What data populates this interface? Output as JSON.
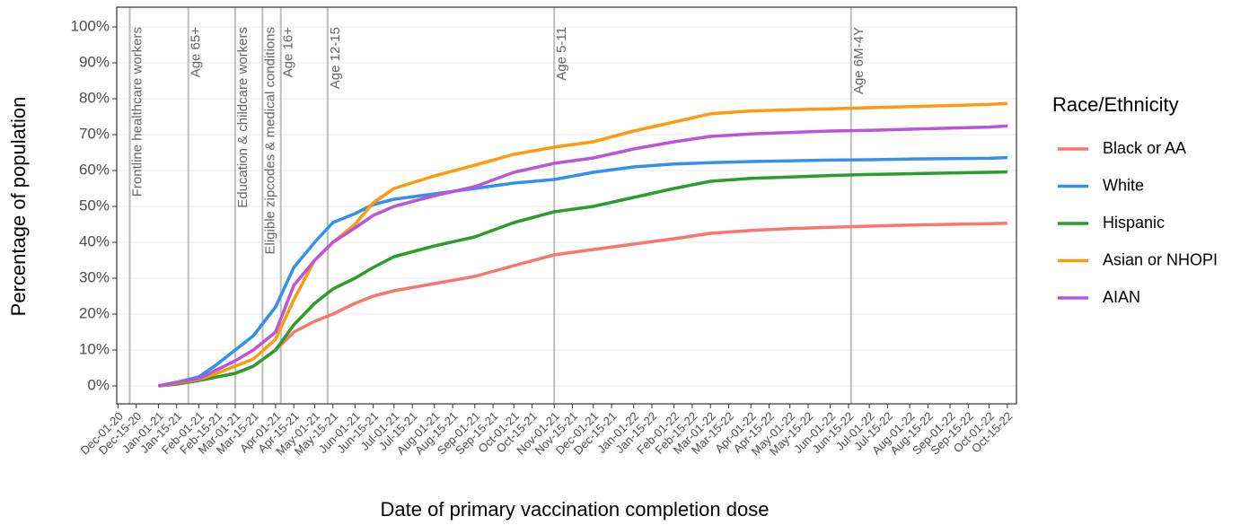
{
  "chart_data": {
    "type": "line",
    "x_label": "Date of primary vaccination completion dose",
    "y_label": "Percentage of population",
    "legend_title": "Race/Ethnicity",
    "legend_position": "right",
    "grid": true,
    "x": [
      "2021-01-01",
      "2021-01-15",
      "2021-02-01",
      "2021-02-15",
      "2021-03-01",
      "2021-03-15",
      "2021-04-01",
      "2021-04-15",
      "2021-05-01",
      "2021-05-15",
      "2021-06-01",
      "2021-06-15",
      "2021-07-01",
      "2021-08-01",
      "2021-09-01",
      "2021-10-01",
      "2021-11-01",
      "2021-12-01",
      "2022-01-01",
      "2022-02-01",
      "2022-03-01",
      "2022-04-01",
      "2022-05-01",
      "2022-06-01",
      "2022-07-01",
      "2022-08-01",
      "2022-09-01",
      "2022-10-01",
      "2022-10-15"
    ],
    "series": [
      {
        "name": "Black or AA",
        "color": "#F8766D",
        "values": [
          0,
          0.5,
          1.5,
          2.5,
          3.5,
          5.5,
          10,
          15,
          18,
          20,
          23,
          25,
          26.5,
          28.5,
          30.5,
          33.5,
          36.5,
          38,
          39.5,
          41,
          42.5,
          43.3,
          43.8,
          44.2,
          44.5,
          44.8,
          45,
          45.2,
          45.3
        ]
      },
      {
        "name": "White",
        "color": "#3391EE",
        "values": [
          0,
          1,
          2.5,
          6,
          10,
          14,
          22,
          33,
          40,
          45.5,
          48,
          50.5,
          52,
          53.5,
          55,
          56.5,
          57.5,
          59.5,
          61,
          61.8,
          62.2,
          62.5,
          62.7,
          62.9,
          63,
          63.2,
          63.3,
          63.4,
          63.6
        ]
      },
      {
        "name": "Hispanic",
        "color": "#2A9D2A",
        "values": [
          0,
          0.5,
          1.5,
          2.5,
          3.5,
          5.5,
          10,
          17,
          23,
          27,
          30,
          33,
          36,
          39,
          41.5,
          45.5,
          48.5,
          50,
          52.5,
          55,
          57,
          57.8,
          58.2,
          58.6,
          58.9,
          59.1,
          59.3,
          59.5,
          59.6
        ]
      },
      {
        "name": "Asian or NHOPI",
        "color": "#FF9A0E",
        "values": [
          0,
          0.8,
          1.8,
          3.5,
          5.5,
          7.5,
          13,
          24,
          35,
          40,
          45,
          51,
          55,
          58.5,
          61.5,
          64.5,
          66.5,
          68,
          71,
          73.5,
          75.8,
          76.6,
          76.9,
          77.2,
          77.5,
          77.8,
          78.1,
          78.4,
          78.7
        ]
      },
      {
        "name": "AIAN",
        "color": "#BA55D8",
        "values": [
          0,
          1,
          2,
          4.5,
          7,
          10,
          15,
          28,
          35,
          40,
          44,
          47.5,
          50,
          53,
          55.5,
          59.5,
          62,
          63.5,
          66,
          68,
          69.5,
          70.2,
          70.6,
          71,
          71.2,
          71.5,
          71.8,
          72.1,
          72.4
        ]
      }
    ],
    "annotations": [
      {
        "x": "2020-12-10",
        "label": "Frontline healthcare workers"
      },
      {
        "x": "2021-01-24",
        "label": "Age 65+"
      },
      {
        "x": "2021-03-01",
        "label": "Education & childcare workers"
      },
      {
        "x": "2021-03-22",
        "label": "Eligible zipcodes & medical conditions"
      },
      {
        "x": "2021-04-05",
        "label": "Age 16+"
      },
      {
        "x": "2021-05-11",
        "label": "Age 12-15"
      },
      {
        "x": "2021-11-01",
        "label": "Age 5-11"
      },
      {
        "x": "2022-06-17",
        "label": "Age 6M-4Y"
      }
    ],
    "xlim": [
      "2020-11-30",
      "2022-10-22"
    ],
    "xticks": [
      {
        "value": "2020-12-01",
        "label": "Dec-01-20"
      },
      {
        "value": "2020-12-15",
        "label": "Dec-15-20"
      },
      {
        "value": "2021-01-01",
        "label": "Jan-01-21"
      },
      {
        "value": "2021-01-15",
        "label": "Jan-15-21"
      },
      {
        "value": "2021-02-01",
        "label": "Feb-01-21"
      },
      {
        "value": "2021-02-15",
        "label": "Feb-15-21"
      },
      {
        "value": "2021-03-01",
        "label": "Mar-01-21"
      },
      {
        "value": "2021-03-15",
        "label": "Mar-15-21"
      },
      {
        "value": "2021-04-01",
        "label": "Apr-01-21"
      },
      {
        "value": "2021-04-15",
        "label": "Apr-15-21"
      },
      {
        "value": "2021-05-01",
        "label": "May-01-21"
      },
      {
        "value": "2021-05-15",
        "label": "May-15-21"
      },
      {
        "value": "2021-06-01",
        "label": "Jun-01-21"
      },
      {
        "value": "2021-06-15",
        "label": "Jun-15-21"
      },
      {
        "value": "2021-07-01",
        "label": "Jul-01-21"
      },
      {
        "value": "2021-07-15",
        "label": "Jul-15-21"
      },
      {
        "value": "2021-08-01",
        "label": "Aug-01-21"
      },
      {
        "value": "2021-08-15",
        "label": "Aug-15-21"
      },
      {
        "value": "2021-09-01",
        "label": "Sep-01-21"
      },
      {
        "value": "2021-09-15",
        "label": "Sep-15-21"
      },
      {
        "value": "2021-10-01",
        "label": "Oct-01-21"
      },
      {
        "value": "2021-10-15",
        "label": "Oct-15-21"
      },
      {
        "value": "2021-11-01",
        "label": "Nov-01-21"
      },
      {
        "value": "2021-11-15",
        "label": "Nov-15-21"
      },
      {
        "value": "2021-12-01",
        "label": "Dec-01-21"
      },
      {
        "value": "2021-12-15",
        "label": "Dec-15-21"
      },
      {
        "value": "2022-01-01",
        "label": "Jan-01-22"
      },
      {
        "value": "2022-01-15",
        "label": "Jan-15-22"
      },
      {
        "value": "2022-02-01",
        "label": "Feb-01-22"
      },
      {
        "value": "2022-02-15",
        "label": "Feb-15-22"
      },
      {
        "value": "2022-03-01",
        "label": "Mar-01-22"
      },
      {
        "value": "2022-03-15",
        "label": "Mar-15-22"
      },
      {
        "value": "2022-04-01",
        "label": "Apr-01-22"
      },
      {
        "value": "2022-04-15",
        "label": "Apr-15-22"
      },
      {
        "value": "2022-05-01",
        "label": "May-01-22"
      },
      {
        "value": "2022-05-15",
        "label": "May-15-22"
      },
      {
        "value": "2022-06-01",
        "label": "Jun-01-22"
      },
      {
        "value": "2022-06-15",
        "label": "Jun-15-22"
      },
      {
        "value": "2022-07-01",
        "label": "Jul-01-22"
      },
      {
        "value": "2022-07-15",
        "label": "Jul-15-22"
      },
      {
        "value": "2022-08-01",
        "label": "Aug-01-22"
      },
      {
        "value": "2022-08-15",
        "label": "Aug-15-22"
      },
      {
        "value": "2022-09-01",
        "label": "Sep-01-22"
      },
      {
        "value": "2022-09-15",
        "label": "Sep-15-22"
      },
      {
        "value": "2022-10-01",
        "label": "Oct-01-22"
      },
      {
        "value": "2022-10-15",
        "label": "Oct-15-22"
      }
    ],
    "ylim": [
      -5,
      105.5
    ],
    "yticks": [
      {
        "value": 0,
        "label": "0%"
      },
      {
        "value": 10,
        "label": "10%"
      },
      {
        "value": 20,
        "label": "20%"
      },
      {
        "value": 30,
        "label": "30%"
      },
      {
        "value": 40,
        "label": "40%"
      },
      {
        "value": 50,
        "label": "50%"
      },
      {
        "value": 60,
        "label": "60%"
      },
      {
        "value": 70,
        "label": "70%"
      },
      {
        "value": 80,
        "label": "80%"
      },
      {
        "value": 90,
        "label": "90%"
      },
      {
        "value": 100,
        "label": "100%"
      }
    ]
  }
}
